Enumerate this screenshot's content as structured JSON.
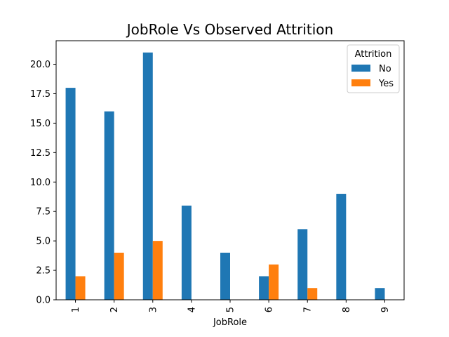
{
  "chart_data": {
    "type": "bar",
    "title": "JobRole Vs Observed Attrition",
    "xlabel": "JobRole",
    "ylabel": "",
    "categories": [
      "1",
      "2",
      "3",
      "4",
      "5",
      "6",
      "7",
      "8",
      "9"
    ],
    "series": [
      {
        "name": "No",
        "color": "#1f77b4",
        "values": [
          18,
          16,
          21,
          8,
          4,
          2,
          6,
          9,
          1
        ]
      },
      {
        "name": "Yes",
        "color": "#ff7f0e",
        "values": [
          2,
          4,
          5,
          0,
          0,
          3,
          1,
          0,
          0
        ]
      }
    ],
    "ylim": [
      0,
      22
    ],
    "yticks": [
      "0.0",
      "2.5",
      "5.0",
      "7.5",
      "10.0",
      "12.5",
      "15.0",
      "17.5",
      "20.0"
    ],
    "legend": {
      "title": "Attrition",
      "placement": "top-right"
    },
    "grid": false
  }
}
